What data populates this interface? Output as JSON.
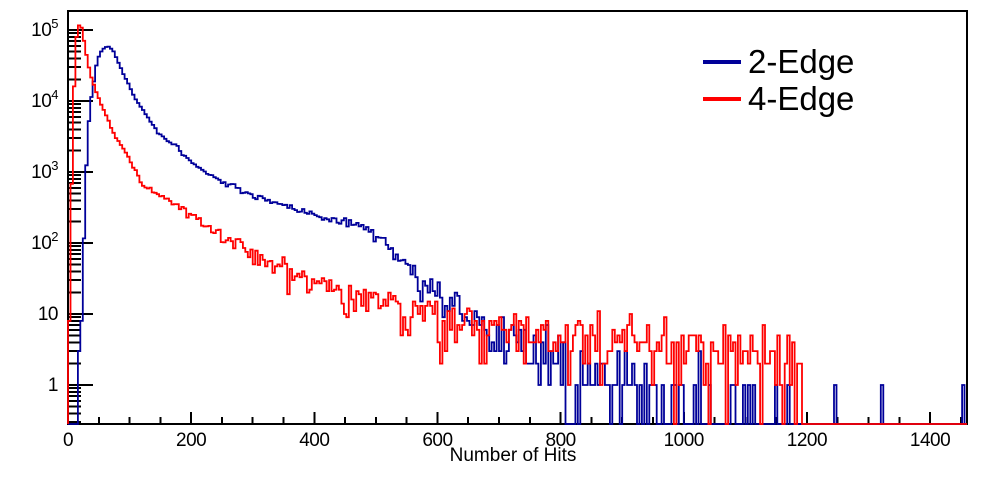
{
  "figure": {
    "background": "#ffffff",
    "frame_color": "#000000"
  },
  "legend": {
    "entries": [
      {
        "label": "2-Edge",
        "color": "#000099"
      },
      {
        "label": "4-Edge",
        "color": "#ff0000"
      }
    ]
  },
  "chart_data": {
    "type": "line",
    "subtype": "step-histogram",
    "title": "",
    "xlabel": "Number of Hits",
    "ylabel": "",
    "x_range": [
      0,
      1460
    ],
    "y_scale": "log",
    "y_range": [
      0.282,
      188000
    ],
    "grid": false,
    "legend_position": "top-right",
    "x_major_ticks": [
      0,
      200,
      400,
      600,
      800,
      1000,
      1200,
      1400
    ],
    "x_major_tick_labels": [
      "0",
      "200",
      "400",
      "600",
      "800",
      "1000",
      "1200",
      "1400"
    ],
    "x_minor_tick_step": 50,
    "y_major_ticks": [
      {
        "v": 1,
        "base": "1",
        "exp": ""
      },
      {
        "v": 10,
        "base": "10",
        "exp": ""
      },
      {
        "v": 100,
        "base": "10",
        "exp": "2"
      },
      {
        "v": 1000,
        "base": "10",
        "exp": "3"
      },
      {
        "v": 10000,
        "base": "10",
        "exp": "4"
      },
      {
        "v": 100000,
        "base": "10",
        "exp": "5"
      }
    ],
    "y_minor_ticks": "2-9 in each decade",
    "bin_width": 4,
    "noise": {
      "rel_boost": 1.3,
      "count_boost": 1.15,
      "log_sigma": 0.15
    },
    "series": [
      {
        "name": "2-Edge",
        "color": "#000099",
        "seed": 7,
        "peak": {
          "x": 63,
          "y": 58200
        },
        "cutoff_x": 1205,
        "extra_spikes": [
          [
            1244,
            1
          ],
          [
            1322,
            1
          ],
          [
            1453,
            1
          ]
        ],
        "anchors": [
          [
            16,
            0.4
          ],
          [
            18,
            1.2
          ],
          [
            20,
            3
          ],
          [
            23,
            15
          ],
          [
            26,
            120
          ],
          [
            29,
            800
          ],
          [
            32,
            3000
          ],
          [
            36,
            9000
          ],
          [
            40,
            14000
          ],
          [
            44,
            26000
          ],
          [
            48,
            38000
          ],
          [
            52,
            47000
          ],
          [
            56,
            53000
          ],
          [
            60,
            56500
          ],
          [
            63,
            58200
          ],
          [
            66,
            58000
          ],
          [
            70,
            55000
          ],
          [
            75,
            48000
          ],
          [
            80,
            38000
          ],
          [
            85,
            30500
          ],
          [
            90,
            24000
          ],
          [
            95,
            19500
          ],
          [
            100,
            16000
          ],
          [
            104,
            13300
          ],
          [
            109,
            11000
          ],
          [
            117,
            8600
          ],
          [
            125,
            6800
          ],
          [
            133,
            5300
          ],
          [
            141,
            4200
          ],
          [
            150,
            3400
          ],
          [
            162,
            2750
          ],
          [
            174,
            2350
          ],
          [
            190,
            1700
          ],
          [
            206,
            1260
          ],
          [
            222,
            1000
          ],
          [
            240,
            820
          ],
          [
            260,
            660
          ],
          [
            280,
            550
          ],
          [
            300,
            470
          ],
          [
            320,
            420
          ],
          [
            340,
            375
          ],
          [
            360,
            330
          ],
          [
            380,
            280
          ],
          [
            395,
            250
          ],
          [
            410,
            232
          ],
          [
            425,
            215
          ],
          [
            440,
            205
          ],
          [
            455,
            196
          ],
          [
            468,
            180
          ],
          [
            480,
            158
          ],
          [
            492,
            132
          ],
          [
            505,
            112
          ],
          [
            517,
            92
          ],
          [
            530,
            70
          ],
          [
            543,
            52
          ],
          [
            557,
            40
          ],
          [
            572,
            30
          ],
          [
            588,
            23
          ],
          [
            605,
            18.5
          ],
          [
            622,
            15
          ],
          [
            640,
            11.5
          ],
          [
            655,
            9
          ],
          [
            670,
            7
          ],
          [
            685,
            5.6
          ],
          [
            700,
            4.6
          ],
          [
            720,
            3.8
          ],
          [
            745,
            3.1
          ],
          [
            770,
            2.6
          ],
          [
            800,
            2.1
          ],
          [
            835,
            1.7
          ],
          [
            870,
            1.35
          ],
          [
            910,
            1.05
          ],
          [
            950,
            0.8
          ],
          [
            1000,
            0.62
          ],
          [
            1060,
            0.47
          ],
          [
            1120,
            0.36
          ],
          [
            1205,
            0.24
          ]
        ]
      },
      {
        "name": "4-Edge",
        "color": "#ff0000",
        "seed": 3,
        "peak": {
          "x": 20,
          "y": 118000
        },
        "cutoff_x": 1190,
        "extra_spikes": [],
        "anchors": [
          [
            2,
            9
          ],
          [
            4,
            80
          ],
          [
            6,
            700
          ],
          [
            8,
            4500
          ],
          [
            10,
            16000
          ],
          [
            12,
            45000
          ],
          [
            14,
            80000
          ],
          [
            16,
            105000
          ],
          [
            18,
            116000
          ],
          [
            20,
            118000
          ],
          [
            22,
            108000
          ],
          [
            24,
            92000
          ],
          [
            27,
            62000
          ],
          [
            30,
            44000
          ],
          [
            33,
            32000
          ],
          [
            36,
            24500
          ],
          [
            40,
            19000
          ],
          [
            44,
            15000
          ],
          [
            50,
            10500
          ],
          [
            55,
            8400
          ],
          [
            60,
            7000
          ],
          [
            68,
            4700
          ],
          [
            76,
            3300
          ],
          [
            84,
            2550
          ],
          [
            93,
            2000
          ],
          [
            101,
            1450
          ],
          [
            109,
            1000
          ],
          [
            120,
            720
          ],
          [
            132,
            560
          ],
          [
            145,
            470
          ],
          [
            160,
            410
          ],
          [
            175,
            355
          ],
          [
            190,
            280
          ],
          [
            205,
            225
          ],
          [
            220,
            180
          ],
          [
            235,
            145
          ],
          [
            250,
            120
          ],
          [
            265,
            104
          ],
          [
            280,
            92
          ],
          [
            300,
            68
          ],
          [
            311,
            58
          ],
          [
            330,
            50
          ],
          [
            350,
            43
          ],
          [
            370,
            36
          ],
          [
            390,
            31
          ],
          [
            410,
            27
          ],
          [
            430,
            24
          ],
          [
            450,
            21
          ],
          [
            470,
            18.5
          ],
          [
            490,
            16.5
          ],
          [
            510,
            14.8
          ],
          [
            530,
            13.2
          ],
          [
            550,
            12
          ],
          [
            570,
            10.7
          ],
          [
            590,
            9.6
          ],
          [
            610,
            8.8
          ],
          [
            630,
            8
          ],
          [
            650,
            7.4
          ],
          [
            680,
            6.7
          ],
          [
            710,
            6.1
          ],
          [
            740,
            5.6
          ],
          [
            780,
            5.1
          ],
          [
            820,
            4.7
          ],
          [
            860,
            4.3
          ],
          [
            900,
            4
          ],
          [
            940,
            3.7
          ],
          [
            980,
            3.4
          ],
          [
            1020,
            3.1
          ],
          [
            1060,
            2.9
          ],
          [
            1100,
            2.7
          ],
          [
            1140,
            2.55
          ],
          [
            1190,
            2.35
          ]
        ]
      }
    ]
  }
}
